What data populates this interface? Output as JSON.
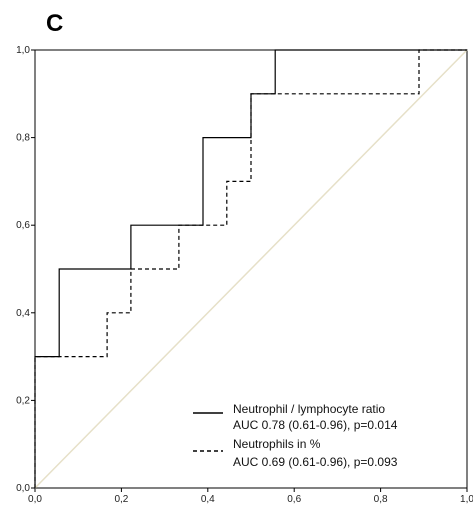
{
  "panel_label": "C",
  "chart_data": {
    "type": "line",
    "title": "",
    "xlabel": "",
    "ylabel": "",
    "xlim": [
      0,
      1
    ],
    "ylim": [
      0,
      1
    ],
    "x_ticks": [
      "0,0",
      "0,2",
      "0,4",
      "0,6",
      "0,8",
      "1,0"
    ],
    "y_ticks": [
      "0,0",
      "0,2",
      "0,4",
      "0,6",
      "0,8",
      "1,0"
    ],
    "grid": false,
    "legend_position": "bottom-right",
    "reference_line": {
      "from": [
        0,
        0
      ],
      "to": [
        1,
        1
      ],
      "color": "#e6e0c8"
    },
    "series": [
      {
        "name": "Neutrophil / lymphocyte ratio",
        "detail": "AUC 0.78 (0.61-0.96), p=0.014",
        "style": "solid",
        "color": "#000000",
        "points": [
          [
            0,
            0
          ],
          [
            0,
            0.3
          ],
          [
            0.056,
            0.3
          ],
          [
            0.056,
            0.5
          ],
          [
            0.222,
            0.5
          ],
          [
            0.222,
            0.6
          ],
          [
            0.389,
            0.6
          ],
          [
            0.389,
            0.8
          ],
          [
            0.5,
            0.8
          ],
          [
            0.5,
            0.9
          ],
          [
            0.556,
            0.9
          ],
          [
            0.556,
            1.0
          ],
          [
            1.0,
            1.0
          ]
        ]
      },
      {
        "name": "Neutrophils in %",
        "detail": "AUC 0.69 (0.61-0.96), p=0.093",
        "style": "dashed",
        "color": "#000000",
        "points": [
          [
            0,
            0
          ],
          [
            0,
            0.3
          ],
          [
            0.167,
            0.3
          ],
          [
            0.167,
            0.4
          ],
          [
            0.222,
            0.4
          ],
          [
            0.222,
            0.5
          ],
          [
            0.333,
            0.5
          ],
          [
            0.333,
            0.6
          ],
          [
            0.444,
            0.6
          ],
          [
            0.444,
            0.7
          ],
          [
            0.5,
            0.7
          ],
          [
            0.5,
            0.9
          ],
          [
            0.889,
            0.9
          ],
          [
            0.889,
            1.0
          ],
          [
            1.0,
            1.0
          ]
        ]
      }
    ]
  }
}
